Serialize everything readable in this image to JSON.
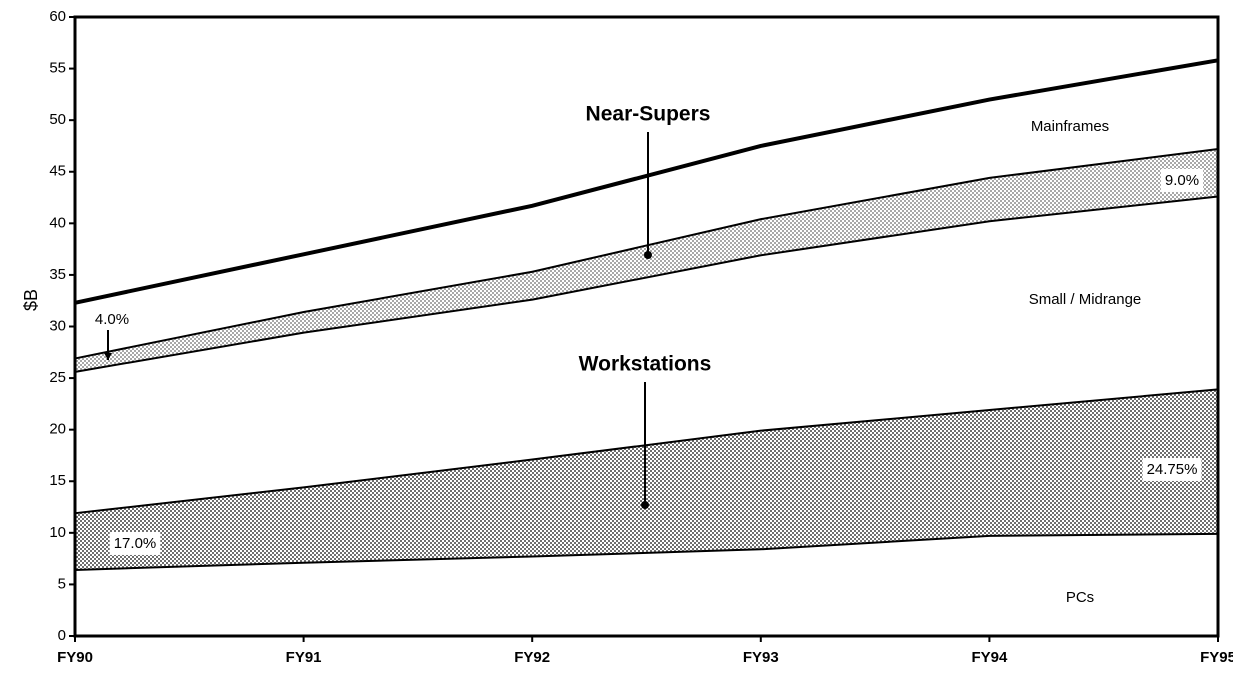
{
  "chart_data": {
    "type": "stacked_area",
    "y_label": "$B",
    "categories": [
      "FY90",
      "FY91",
      "FY92",
      "FY93",
      "FY94",
      "FY95"
    ],
    "series": [
      {
        "name": "PCs",
        "color": "#ffffff",
        "values": [
          6.5,
          7.2,
          7.8,
          8.5,
          9.8,
          10
        ]
      },
      {
        "name": "Workstations",
        "color": "#6e6e6e",
        "values": [
          5.5,
          7.3,
          9.4,
          11.5,
          12.2,
          14
        ]
      },
      {
        "name": "Small / Midrange",
        "color": "#ffffff",
        "values": [
          13.7,
          15,
          15.5,
          17,
          18.3,
          18.7
        ]
      },
      {
        "name": "Near-Supers",
        "color": "#a8a8a8",
        "values": [
          1.3,
          2,
          2.7,
          3.5,
          4.2,
          4.6
        ]
      },
      {
        "name": "Mainframes",
        "color": "#ffffff",
        "values": [
          5.3,
          5.5,
          6.3,
          7,
          7.5,
          8.5
        ]
      }
    ],
    "annotations": [
      "4.0%",
      "9.0%",
      "17.0%",
      "24.75%"
    ],
    "ylim": [
      0,
      60
    ],
    "yticks": [
      0,
      5,
      10,
      15,
      20,
      25,
      30,
      35,
      40,
      45,
      50,
      55,
      60
    ]
  }
}
